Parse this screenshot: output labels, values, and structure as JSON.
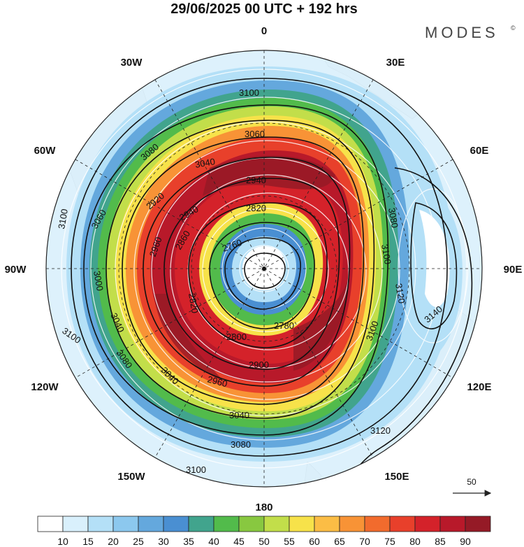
{
  "header": {
    "title": "29/06/2025  00 UTC  + 192 hrs",
    "brand": "MODES",
    "brand_mark": "©"
  },
  "map": {
    "projection": "south-polar-stereographic",
    "longitude_labels": {
      "deg_0": "0",
      "deg_30e": "30E",
      "deg_60e": "60E",
      "deg_90e": "90E",
      "deg_120e": "120E",
      "deg_150e": "150E",
      "deg_180": "180",
      "deg_150w": "150W",
      "deg_120w": "120W",
      "deg_90w": "90W",
      "deg_60w": "60W",
      "deg_30w": "30W"
    },
    "contour_labels": {
      "l3100_top": "3100",
      "l3060_top": "3060",
      "l3080_topleft": "3080",
      "l3040_top": "3040",
      "l2940_top": "2940",
      "l2920_left": "2920",
      "l2940_left": "2940",
      "l2820_top": "2820",
      "l2860_left": "2860",
      "l2760_inner": "2760",
      "l2960_left": "2960",
      "l3100_left": "3100",
      "l3060_left": "3060",
      "l3000_left": "3000",
      "l2820_center": "2820",
      "l3040_left": "3040",
      "l2780_center": "2780",
      "l2800_bottom": "2800",
      "l2900_bottom": "2900",
      "l2960_bottom": "2960",
      "l3100_bottomleft": "3100",
      "l3080_left": "3080",
      "l3040_bottomleft": "3040",
      "l3040_bottom": "3040",
      "l3080_bottom": "3080",
      "l3100_bottom": "3100",
      "l3120_bottomright": "3120",
      "l3100_right": "3100",
      "l3080_right": "3080",
      "l3100_rightlower": "3100",
      "l3120_right": "3120",
      "l3140_right": "3140"
    },
    "vector_reference": {
      "value": "50"
    }
  },
  "colorbar": {
    "ticks": [
      "10",
      "15",
      "20",
      "25",
      "30",
      "35",
      "40",
      "45",
      "50",
      "55",
      "60",
      "65",
      "70",
      "75",
      "80",
      "85",
      "90"
    ],
    "colors": [
      "#ffffff",
      "#d9f0fc",
      "#b4e0f7",
      "#8cc8ee",
      "#64a8dd",
      "#4a8fd2",
      "#41a48d",
      "#52bb4b",
      "#88c840",
      "#c2de4a",
      "#f7e24a",
      "#fbbd45",
      "#f89336",
      "#f26b2d",
      "#e8402b",
      "#d4222a",
      "#b8192a",
      "#951a26"
    ]
  },
  "colors": {
    "land": "#e6e6e6",
    "contour": "#111111",
    "streamline": "#ffffff",
    "grid": "#222222"
  }
}
